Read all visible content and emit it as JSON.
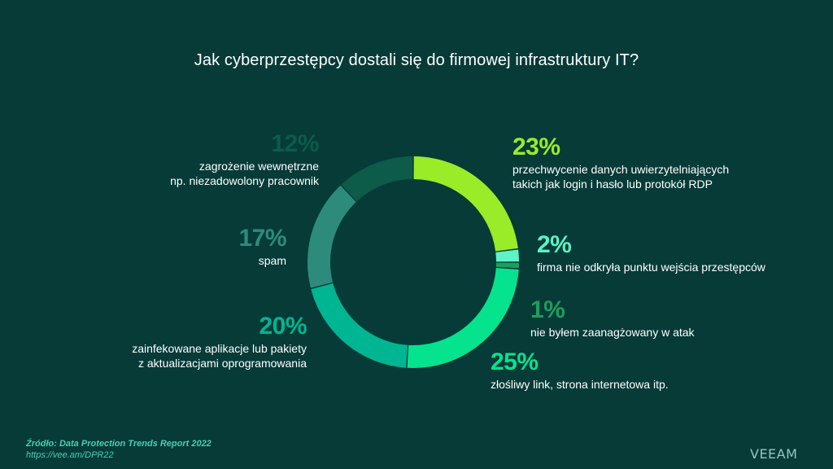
{
  "title": "Jak cyberprzestępcy dostali się do firmowej infrastruktury IT?",
  "chart_data": {
    "type": "pie",
    "title": "Jak cyberprzestępcy dostali się do firmowej infrastruktury IT?",
    "slices": [
      {
        "value": 23,
        "percent_label": "23%",
        "label": "przechwycenie danych uwierzytelniających takich jak login i hasło lub protokół RDP",
        "color": "#9aeb28"
      },
      {
        "value": 2,
        "percent_label": "2%",
        "label": "firma nie odkryła punktu wejścia przestępców",
        "color": "#5ef2c6"
      },
      {
        "value": 1,
        "percent_label": "1%",
        "label": "nie byłem zaanagżowany w atak",
        "color": "#1f9d5c"
      },
      {
        "value": 25,
        "percent_label": "25%",
        "label": "złośliwy link, strona internetowa itp.",
        "color": "#05e38e"
      },
      {
        "value": 20,
        "percent_label": "20%",
        "label": "zainfekowane aplikacje lub pakiety z aktualizacjami oprogramowania",
        "color": "#00b592"
      },
      {
        "value": 17,
        "percent_label": "17%",
        "label": "spam",
        "color": "#2d8b7c"
      },
      {
        "value": 12,
        "percent_label": "12%",
        "label": "zagrożenie wewnętrzne np. niezadowolony pracownik",
        "color": "#0d5b49"
      }
    ]
  },
  "labels": {
    "s23": {
      "pct": "23%",
      "line1": "przechwycenie danych uwierzytelniających",
      "line2": "takich jak login i hasło lub protokół RDP",
      "color": "#9aeb28"
    },
    "s2": {
      "pct": "2%",
      "line1": "firma nie odkryła punktu wejścia przestępców",
      "color": "#5ef2c6"
    },
    "s1": {
      "pct": "1%",
      "line1": "nie byłem zaanagżowany w atak",
      "color": "#1f9d5c"
    },
    "s25": {
      "pct": "25%",
      "line1": "złośliwy link, strona internetowa itp.",
      "color": "#05e38e"
    },
    "s20": {
      "pct": "20%",
      "line1": "zainfekowane aplikacje lub pakiety",
      "line2": "z aktualizacjami oprogramowania",
      "color": "#00b592"
    },
    "s17": {
      "pct": "17%",
      "line1": "spam",
      "color": "#2d8b7c"
    },
    "s12": {
      "pct": "12%",
      "line1": "zagrożenie wewnętrzne",
      "line2": "np. niezadowolony pracownik",
      "color": "#0d5b49"
    }
  },
  "source": {
    "prefix": "Źródło:",
    "report": "Data Protection Trends Report 2022",
    "url": "https://vee.am/DPR22"
  },
  "logo": "VEEAM"
}
